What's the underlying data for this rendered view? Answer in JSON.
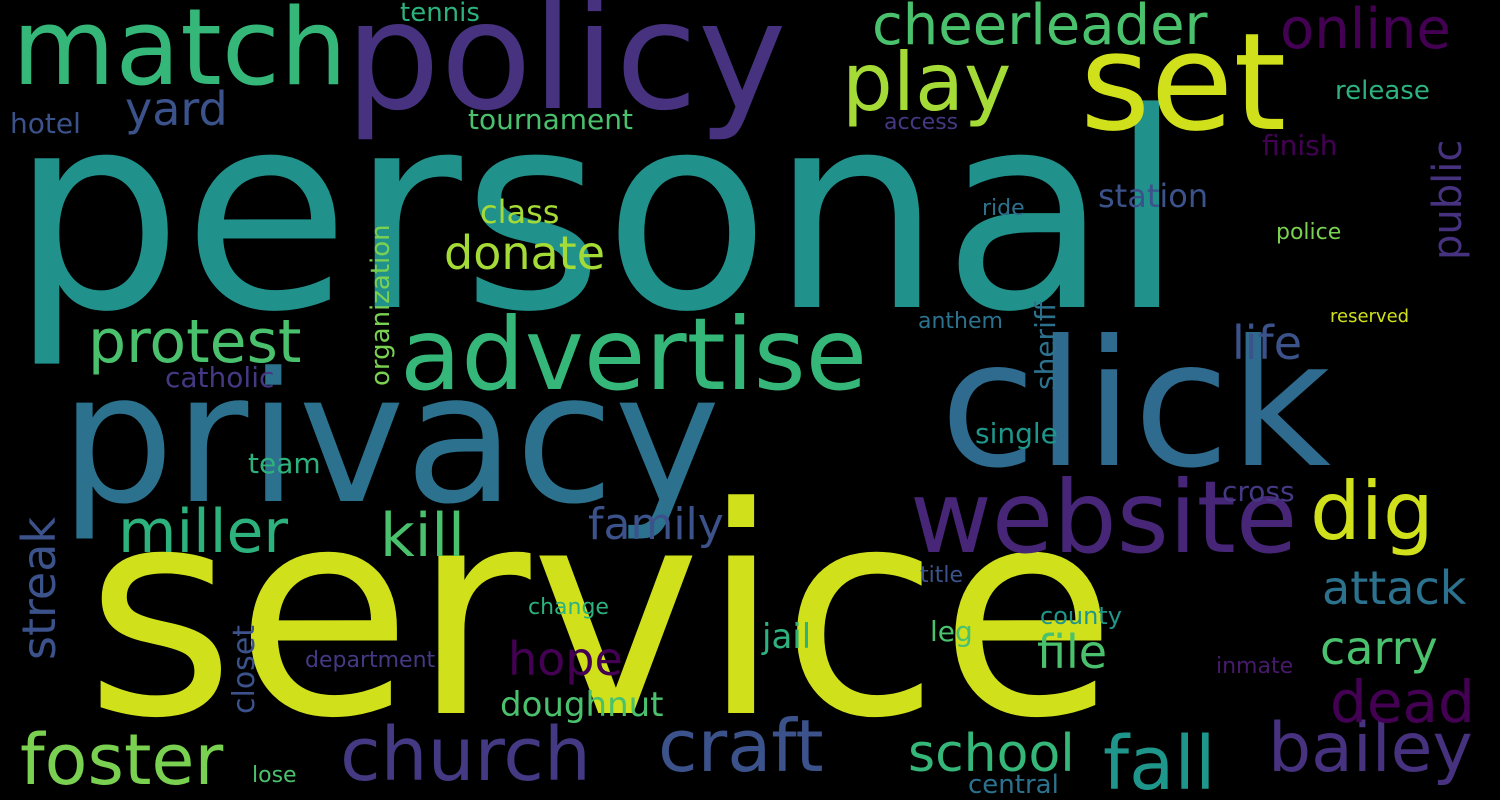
{
  "colors": {
    "background": "#000000",
    "yellow": "#d7e219",
    "lime": "#a5db36",
    "green": "#4ac16d",
    "lightgreen": "#7ad151",
    "teal": "#1f968b",
    "cyan": "#21918c",
    "blue": "#2c728e",
    "steel": "#365c8d",
    "indigo": "#443983",
    "purple": "#46327e",
    "violet": "#481a6c",
    "darkviolet": "#440154"
  },
  "words": {
    "personal": "personal",
    "service": "service",
    "privacy": "privacy",
    "click": "click",
    "policy": "policy",
    "match": "match",
    "set": "set",
    "advertise": "advertise",
    "website": "website",
    "play": "play",
    "cheerleader": "cheerleader",
    "online": "online",
    "church": "church",
    "craft": "craft",
    "foster": "foster",
    "fall": "fall",
    "bailey": "bailey",
    "dig": "dig",
    "school": "school",
    "protest": "protest",
    "miller": "miller",
    "kill": "kill",
    "dead": "dead",
    "attack": "attack",
    "donate": "donate",
    "family": "family",
    "carry": "carry",
    "hope": "hope",
    "file": "file",
    "yard": "yard",
    "streak": "streak",
    "life": "life",
    "public": "public",
    "doughnut": "doughnut",
    "closet": "closet",
    "jail": "jail",
    "class": "class",
    "station": "station",
    "organization": "organization",
    "sheriff": "sheriff",
    "tournament": "tournament",
    "catholic": "catholic",
    "single": "single",
    "cross": "cross",
    "team": "team",
    "release": "release",
    "finish": "finish",
    "hotel": "hotel",
    "tennis": "tennis",
    "leg": "leg",
    "county": "county",
    "central": "central",
    "change": "change",
    "department": "department",
    "anthem": "anthem",
    "police": "police",
    "ride": "ride",
    "access": "access",
    "title": "title",
    "inmate": "inmate",
    "lose": "lose",
    "reserved": "reserved"
  }
}
